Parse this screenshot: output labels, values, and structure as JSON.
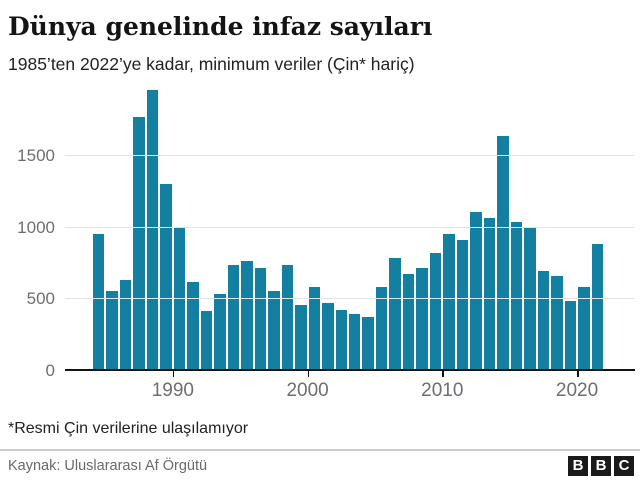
{
  "header": {
    "title": "Dünya genelinde infaz sayıları",
    "subtitle": "1985’ten 2022’ye kadar, minimum veriler (Çin* hariç)"
  },
  "chart_data": {
    "type": "bar",
    "title": "Dünya genelinde infaz sayıları",
    "subtitle": "1985’ten 2022’ye kadar, minimum veriler (Çin* hariç)",
    "xlabel": "",
    "ylabel": "",
    "categories": [
      1985,
      1986,
      1987,
      1988,
      1989,
      1990,
      1991,
      1992,
      1993,
      1994,
      1995,
      1996,
      1997,
      1998,
      1999,
      2000,
      2001,
      2002,
      2003,
      2004,
      2005,
      2006,
      2007,
      2008,
      2009,
      2010,
      2011,
      2012,
      2013,
      2014,
      2015,
      2016,
      2017,
      2018,
      2019,
      2020,
      2021,
      2022
    ],
    "values": [
      950,
      550,
      630,
      1770,
      1960,
      1300,
      995,
      615,
      410,
      535,
      735,
      765,
      715,
      555,
      736,
      457,
      580,
      466,
      420,
      390,
      370,
      581,
      782,
      672,
      714,
      817,
      950,
      910,
      1105,
      1060,
      1634,
      1032,
      993,
      690,
      657,
      483,
      579,
      883
    ],
    "ylim": [
      0,
      2000
    ],
    "ytick_values": [
      0,
      500,
      1000,
      1500
    ],
    "ytick_labels": [
      "0",
      "500",
      "1000",
      "1500"
    ],
    "xtick_values": [
      1990,
      2000,
      2010,
      2020
    ],
    "xtick_labels": [
      "1990",
      "2000",
      "2010",
      "2020"
    ],
    "grid": true,
    "legend": false,
    "bar_color": "#1380A1",
    "grid_color": "#e3e3e3",
    "axis_color": "#141414",
    "tick_label_color": "#6e6e73"
  },
  "footnote": "*Resmi Çin verilerine ulaşılamıyor",
  "source": "Kaynak: Uluslararası Af Örgütü",
  "logo": {
    "blocks": [
      "B",
      "B",
      "C"
    ]
  }
}
